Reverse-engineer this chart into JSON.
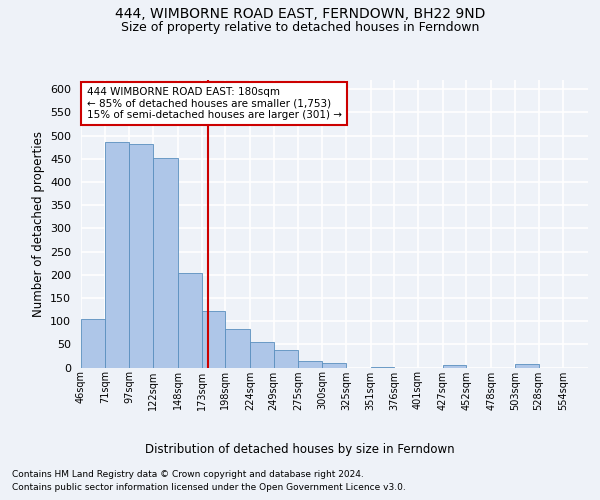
{
  "title": "444, WIMBORNE ROAD EAST, FERNDOWN, BH22 9ND",
  "subtitle": "Size of property relative to detached houses in Ferndown",
  "xlabel": "Distribution of detached houses by size in Ferndown",
  "ylabel": "Number of detached properties",
  "footnote1": "Contains HM Land Registry data © Crown copyright and database right 2024.",
  "footnote2": "Contains public sector information licensed under the Open Government Licence v3.0.",
  "bar_left_edges": [
    46,
    71,
    97,
    122,
    148,
    173,
    198,
    224,
    249,
    275,
    300,
    325,
    351,
    376,
    401,
    427,
    452,
    478,
    503,
    528
  ],
  "bar_widths": [
    25,
    26,
    25,
    26,
    25,
    25,
    26,
    25,
    26,
    25,
    25,
    26,
    25,
    25,
    26,
    25,
    26,
    25,
    25,
    26
  ],
  "bar_heights": [
    105,
    487,
    481,
    451,
    203,
    122,
    82,
    56,
    38,
    15,
    10,
    0,
    2,
    0,
    0,
    5,
    0,
    0,
    7,
    0
  ],
  "tick_labels": [
    "46sqm",
    "71sqm",
    "97sqm",
    "122sqm",
    "148sqm",
    "173sqm",
    "198sqm",
    "224sqm",
    "249sqm",
    "275sqm",
    "300sqm",
    "325sqm",
    "351sqm",
    "376sqm",
    "401sqm",
    "427sqm",
    "452sqm",
    "478sqm",
    "503sqm",
    "528sqm",
    "554sqm"
  ],
  "bar_color": "#aec6e8",
  "bar_edge_color": "#5a8fbe",
  "property_line_x": 180,
  "property_line_color": "#cc0000",
  "annotation_text": "444 WIMBORNE ROAD EAST: 180sqm\n← 85% of detached houses are smaller (1,753)\n15% of semi-detached houses are larger (301) →",
  "annotation_box_color": "#cc0000",
  "ylim": [
    0,
    620
  ],
  "yticks": [
    0,
    50,
    100,
    150,
    200,
    250,
    300,
    350,
    400,
    450,
    500,
    550,
    600
  ],
  "bg_color": "#eef2f8",
  "axes_bg_color": "#eef2f8",
  "grid_color": "#ffffff",
  "title_fontsize": 10,
  "subtitle_fontsize": 9
}
